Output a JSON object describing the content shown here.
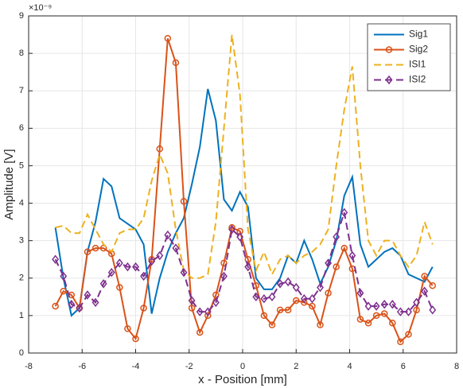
{
  "chart_data": {
    "type": "line",
    "x_label": "x - Position [mm]",
    "y_label": "Amplitude [V]",
    "y_exponent": "×10⁻⁹",
    "x": [
      -7,
      -6.7,
      -6.4,
      -6.1,
      -5.8,
      -5.5,
      -5.2,
      -4.9,
      -4.6,
      -4.3,
      -4,
      -3.7,
      -3.4,
      -3.1,
      -2.8,
      -2.5,
      -2.2,
      -1.9,
      -1.6,
      -1.3,
      -1,
      -0.7,
      -0.4,
      -0.1,
      0.2,
      0.5,
      0.8,
      1.1,
      1.4,
      1.7,
      2,
      2.3,
      2.6,
      2.9,
      3.2,
      3.5,
      3.8,
      4.1,
      4.4,
      4.7,
      5,
      5.3,
      5.6,
      5.9,
      6.2,
      6.5,
      6.8,
      7.1
    ],
    "series": [
      {
        "name": "Sig1",
        "color": "#0072BD",
        "dash": "solid",
        "marker": "none",
        "values": [
          3.35,
          2.0,
          1.0,
          1.2,
          2.7,
          3.5,
          4.65,
          4.45,
          3.6,
          3.45,
          3.3,
          2.9,
          1.05,
          2.0,
          2.7,
          3.2,
          3.6,
          4.5,
          5.5,
          7.05,
          6.2,
          4.1,
          3.8,
          4.3,
          3.9,
          2.0,
          1.7,
          1.7,
          2.0,
          2.6,
          2.4,
          3.0,
          2.5,
          1.85,
          2.3,
          3.0,
          4.2,
          4.7,
          2.9,
          2.3,
          2.5,
          2.7,
          2.8,
          2.6,
          2.1,
          2.0,
          1.9,
          2.3
        ]
      },
      {
        "name": "Sig2",
        "color": "#D95319",
        "dash": "solid",
        "marker": "circle",
        "values": [
          1.25,
          1.65,
          1.55,
          1.2,
          2.7,
          2.8,
          2.8,
          2.65,
          1.75,
          0.65,
          0.38,
          1.2,
          2.5,
          5.45,
          8.4,
          7.75,
          4.05,
          1.2,
          0.55,
          1.0,
          1.55,
          2.4,
          3.35,
          3.25,
          2.5,
          1.8,
          1.0,
          0.75,
          1.15,
          1.15,
          1.4,
          1.35,
          1.25,
          0.75,
          1.6,
          2.3,
          2.8,
          2.25,
          0.9,
          0.8,
          1.0,
          1.05,
          0.8,
          0.3,
          0.5,
          1.15,
          2.05,
          1.8
        ]
      },
      {
        "name": "ISI1",
        "color": "#EDB120",
        "dash": "dashed",
        "marker": "none",
        "values": [
          3.35,
          3.4,
          3.2,
          3.2,
          3.7,
          3.3,
          2.9,
          2.7,
          3.2,
          3.3,
          3.3,
          3.6,
          4.6,
          5.3,
          4.8,
          3.3,
          2.2,
          2.0,
          2.0,
          2.1,
          3.5,
          6.0,
          8.5,
          6.9,
          3.3,
          2.2,
          2.7,
          2.1,
          2.5,
          2.6,
          2.4,
          2.6,
          2.7,
          2.9,
          3.3,
          5.0,
          6.5,
          7.65,
          5.0,
          3.0,
          2.6,
          3.0,
          3.0,
          2.6,
          2.3,
          2.6,
          3.5,
          2.9
        ]
      },
      {
        "name": "ISI2",
        "color": "#7E2F8E",
        "dash": "dashed",
        "marker": "diamond",
        "values": [
          2.5,
          2.05,
          1.3,
          1.2,
          1.55,
          1.35,
          1.85,
          2.15,
          2.4,
          2.3,
          2.3,
          2.05,
          2.45,
          2.6,
          3.15,
          2.8,
          2.15,
          1.4,
          1.1,
          1.1,
          1.35,
          2.05,
          3.3,
          3.1,
          2.3,
          1.5,
          1.45,
          1.5,
          1.85,
          1.9,
          1.75,
          1.45,
          1.45,
          1.75,
          2.4,
          3.1,
          3.75,
          2.6,
          1.6,
          1.25,
          1.25,
          1.3,
          1.3,
          1.1,
          1.1,
          1.35,
          1.65,
          1.15
        ]
      }
    ],
    "xlim": [
      -8,
      8
    ],
    "xticks": [
      -8,
      -6,
      -4,
      -2,
      0,
      2,
      4,
      6,
      8
    ],
    "ylim": [
      0,
      9
    ],
    "yticks": [
      0,
      1,
      2,
      3,
      4,
      5,
      6,
      7,
      8,
      9
    ],
    "grid": true,
    "legend": "upper right"
  }
}
